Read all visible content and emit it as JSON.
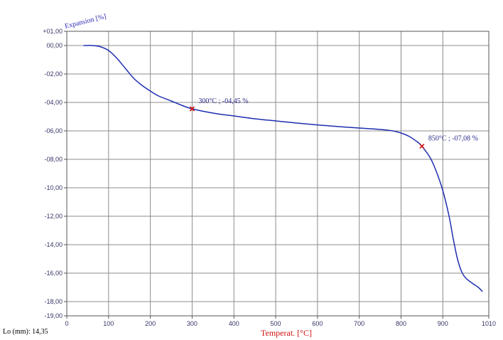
{
  "chart_data": {
    "type": "line",
    "ylabel": "Expansion [%]",
    "xlabel": "Temperat. [°C]",
    "xlim": [
      0,
      1010
    ],
    "ylim": [
      -19,
      1
    ],
    "x_ticks": [
      "0",
      "100",
      "200",
      "300",
      "400",
      "500",
      "600",
      "700",
      "800",
      "900",
      "1010"
    ],
    "x_tick_values": [
      0,
      100,
      200,
      300,
      400,
      500,
      600,
      700,
      800,
      900,
      1010
    ],
    "y_ticks": [
      "+01,00",
      "00,00",
      "-02,00",
      "-04,00",
      "-06,00",
      "-08,00",
      "-10,00",
      "-12,00",
      "-14,00",
      "-16,00",
      "-18,00",
      "-19,00"
    ],
    "y_tick_values": [
      1,
      0,
      -2,
      -4,
      -6,
      -8,
      -10,
      -12,
      -14,
      -16,
      -18,
      -19
    ],
    "grid": true,
    "series": [
      {
        "color": "#1f2fb0",
        "points": [
          [
            40,
            0.0
          ],
          [
            60,
            0.0
          ],
          [
            80,
            -0.08
          ],
          [
            100,
            -0.35
          ],
          [
            120,
            -0.9
          ],
          [
            140,
            -1.6
          ],
          [
            160,
            -2.3
          ],
          [
            180,
            -2.8
          ],
          [
            200,
            -3.2
          ],
          [
            220,
            -3.55
          ],
          [
            250,
            -3.9
          ],
          [
            275,
            -4.2
          ],
          [
            300,
            -4.45
          ],
          [
            350,
            -4.75
          ],
          [
            400,
            -4.95
          ],
          [
            450,
            -5.15
          ],
          [
            500,
            -5.3
          ],
          [
            550,
            -5.45
          ],
          [
            600,
            -5.58
          ],
          [
            650,
            -5.7
          ],
          [
            700,
            -5.8
          ],
          [
            750,
            -5.9
          ],
          [
            780,
            -6.0
          ],
          [
            800,
            -6.15
          ],
          [
            820,
            -6.4
          ],
          [
            840,
            -6.8
          ],
          [
            850,
            -7.08
          ],
          [
            870,
            -7.9
          ],
          [
            885,
            -8.9
          ],
          [
            900,
            -10.2
          ],
          [
            915,
            -12.0
          ],
          [
            925,
            -13.6
          ],
          [
            935,
            -15.0
          ],
          [
            945,
            -15.9
          ],
          [
            955,
            -16.35
          ],
          [
            970,
            -16.7
          ],
          [
            985,
            -17.0
          ],
          [
            995,
            -17.3
          ]
        ]
      }
    ],
    "markers": [
      {
        "x": 300,
        "y": -4.45,
        "label": "300°C ;  -04,45 %"
      },
      {
        "x": 850,
        "y": -7.08,
        "label": "850°C ; -07,08 %"
      }
    ]
  },
  "footer": {
    "lo_label": "Lo (mm): 14,35"
  }
}
